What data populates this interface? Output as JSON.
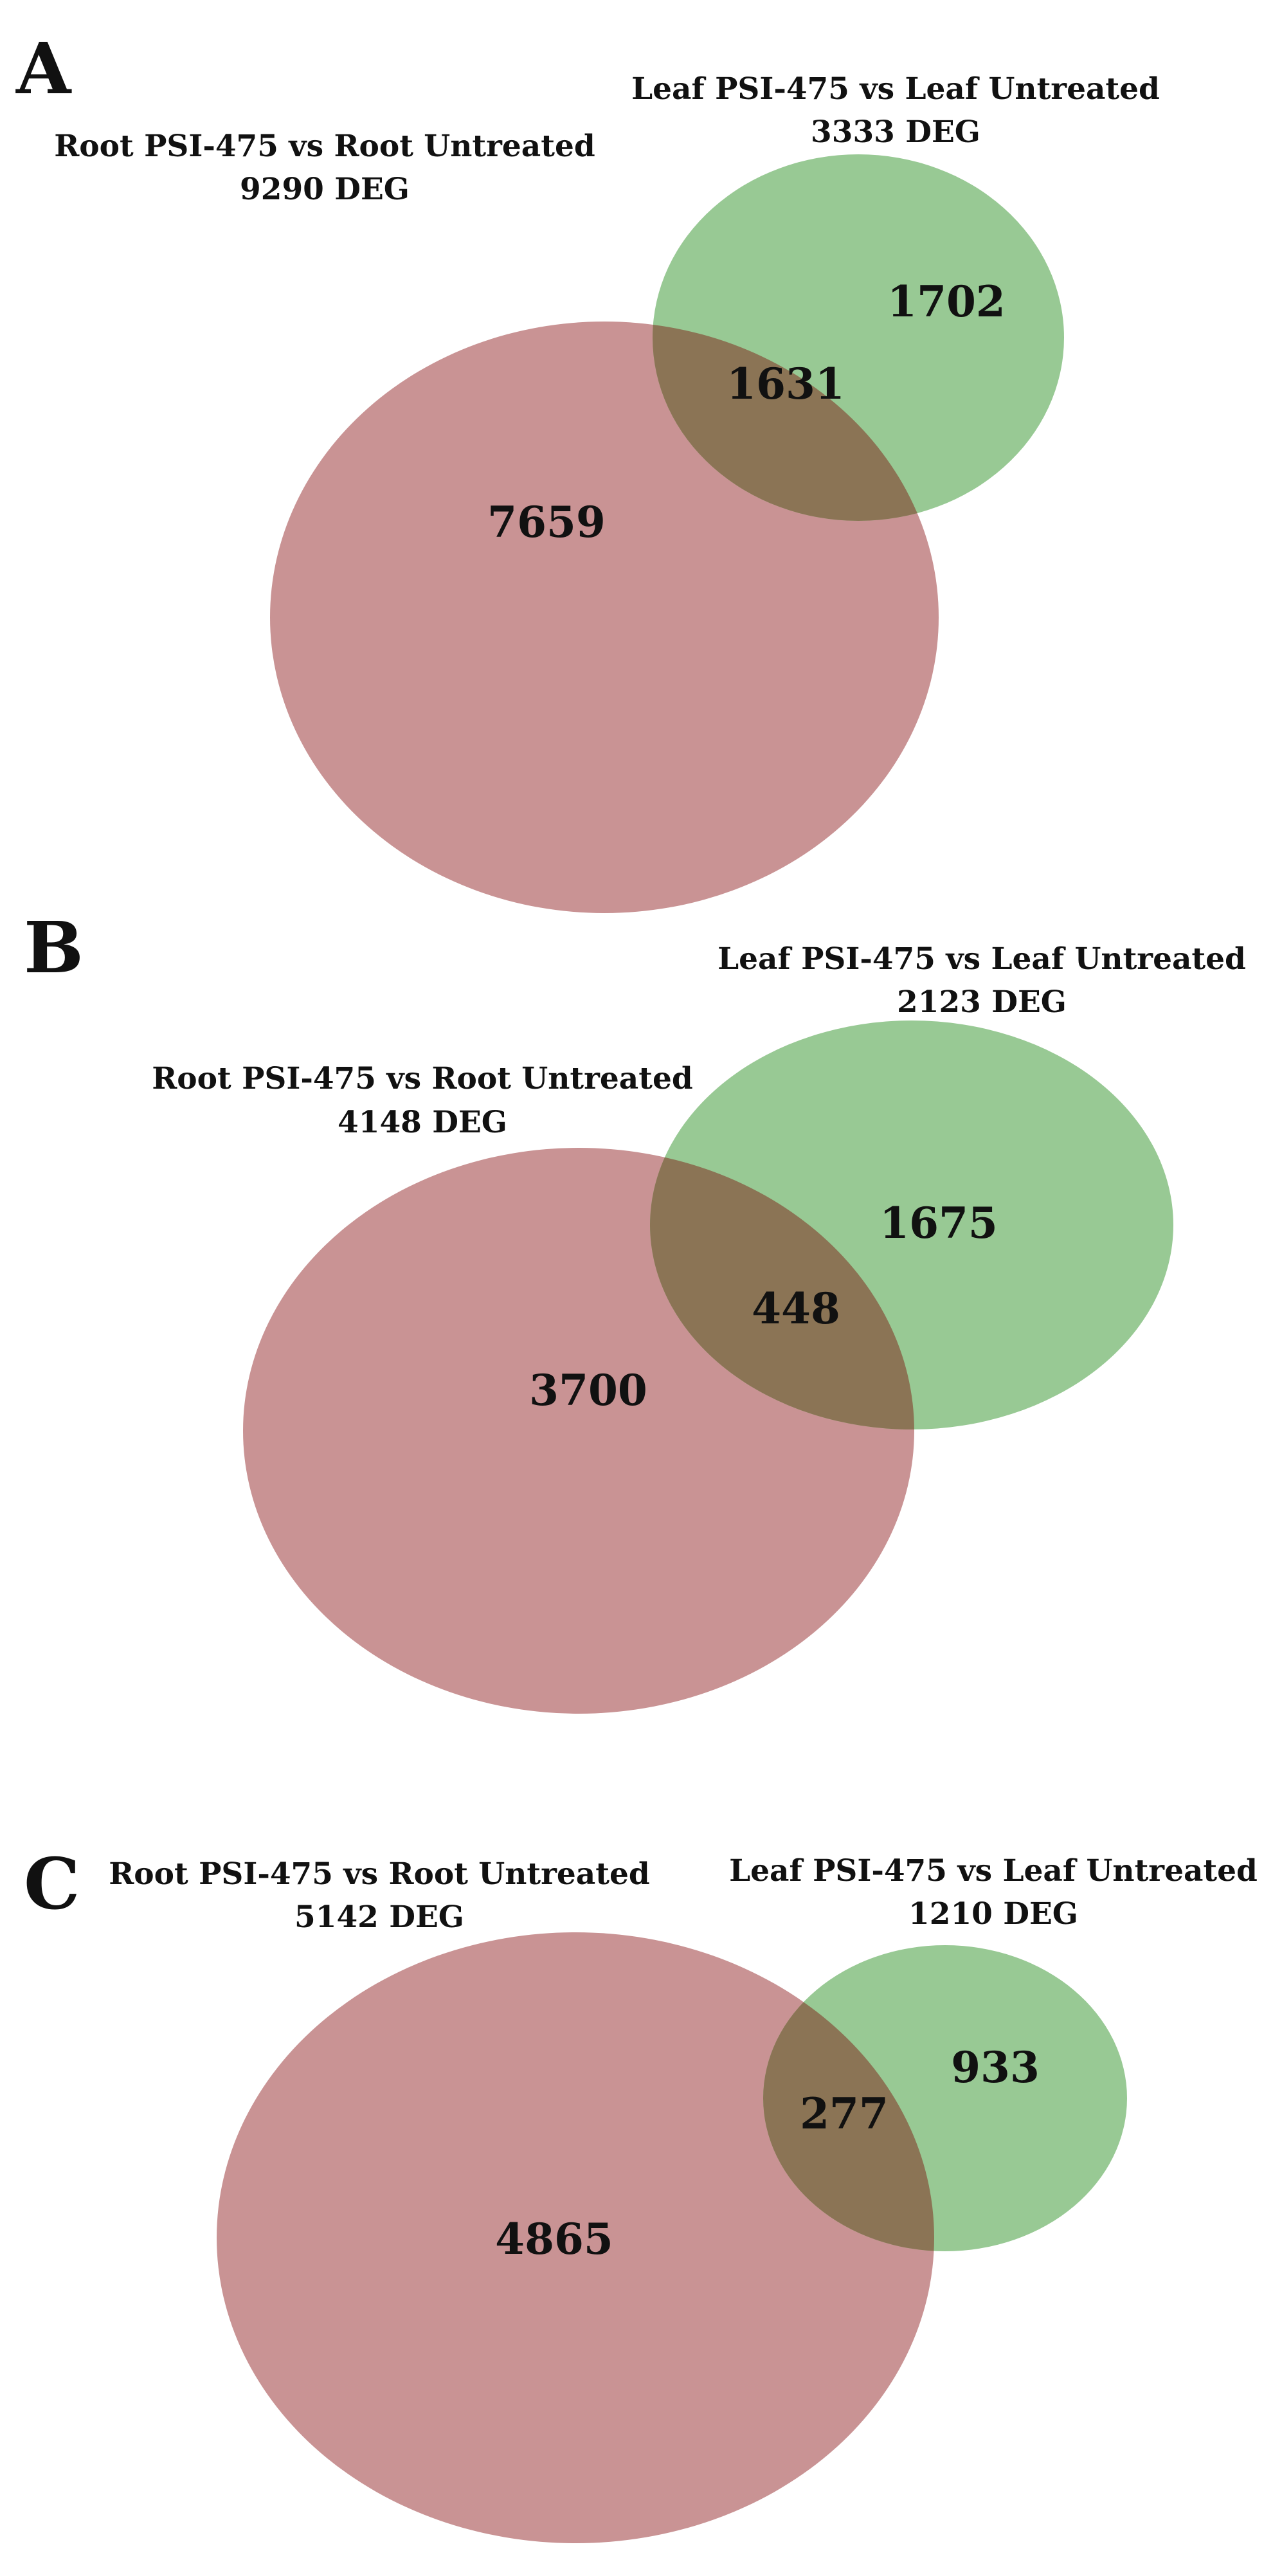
{
  "colors": {
    "root": "#c99394",
    "leaf": "#98c994",
    "overlap": "#8b7455",
    "text": "#111111"
  },
  "panels": [
    {
      "letter": "A",
      "root": {
        "title": "Root PSI-475 vs Root Untreated",
        "total": "9290 DEG",
        "unique": "7659"
      },
      "leaf": {
        "title": "Leaf PSI-475 vs Leaf Untreated",
        "total": "3333 DEG",
        "unique": "1702"
      },
      "shared": "1631"
    },
    {
      "letter": "B",
      "root": {
        "title": "Root PSI-475 vs Root Untreated",
        "total": "4148 DEG",
        "unique": "3700"
      },
      "leaf": {
        "title": "Leaf PSI-475 vs Leaf Untreated",
        "total": "2123 DEG",
        "unique": "1675"
      },
      "shared": "448"
    },
    {
      "letter": "C",
      "root": {
        "title": "Root PSI-475 vs Root Untreated",
        "total": "5142 DEG",
        "unique": "4865"
      },
      "leaf": {
        "title": "Leaf PSI-475 vs Leaf Untreated",
        "total": "1210 DEG",
        "unique": "933"
      },
      "shared": "277"
    }
  ]
}
